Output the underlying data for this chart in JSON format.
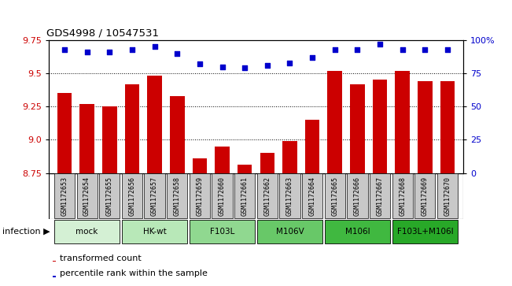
{
  "title": "GDS4998 / 10547531",
  "samples": [
    "GSM1172653",
    "GSM1172654",
    "GSM1172655",
    "GSM1172656",
    "GSM1172657",
    "GSM1172658",
    "GSM1172659",
    "GSM1172660",
    "GSM1172661",
    "GSM1172662",
    "GSM1172663",
    "GSM1172664",
    "GSM1172665",
    "GSM1172666",
    "GSM1172667",
    "GSM1172668",
    "GSM1172669",
    "GSM1172670"
  ],
  "transformed_counts": [
    9.35,
    9.27,
    9.25,
    9.42,
    9.48,
    9.33,
    8.86,
    8.95,
    8.81,
    8.9,
    8.99,
    9.15,
    9.52,
    9.42,
    9.45,
    9.52,
    9.44,
    9.44
  ],
  "percentile_ranks": [
    93,
    91,
    91,
    93,
    95,
    90,
    82,
    80,
    79,
    81,
    83,
    87,
    93,
    93,
    97,
    93,
    93,
    93
  ],
  "groups": [
    {
      "label": "mock",
      "indices": [
        0,
        1,
        2
      ],
      "color": "#d4f0d4"
    },
    {
      "label": "HK-wt",
      "indices": [
        3,
        4,
        5
      ],
      "color": "#b8e8b8"
    },
    {
      "label": "F103L",
      "indices": [
        6,
        7,
        8
      ],
      "color": "#90d890"
    },
    {
      "label": "M106V",
      "indices": [
        9,
        10,
        11
      ],
      "color": "#68c868"
    },
    {
      "label": "M106I",
      "indices": [
        12,
        13,
        14
      ],
      "color": "#40b840"
    },
    {
      "label": "F103L+M106I",
      "indices": [
        15,
        16,
        17
      ],
      "color": "#28a828"
    }
  ],
  "bar_color": "#cc0000",
  "dot_color": "#0000cc",
  "ylim_left": [
    8.75,
    9.75
  ],
  "ylim_right": [
    0,
    100
  ],
  "yticks_left": [
    8.75,
    9.0,
    9.25,
    9.5,
    9.75
  ],
  "yticks_right": [
    0,
    25,
    50,
    75,
    100
  ],
  "bg_color_sample": "#c8c8c8",
  "legend_items": [
    {
      "color": "#cc0000",
      "label": "transformed count"
    },
    {
      "color": "#0000cc",
      "label": "percentile rank within the sample"
    }
  ]
}
